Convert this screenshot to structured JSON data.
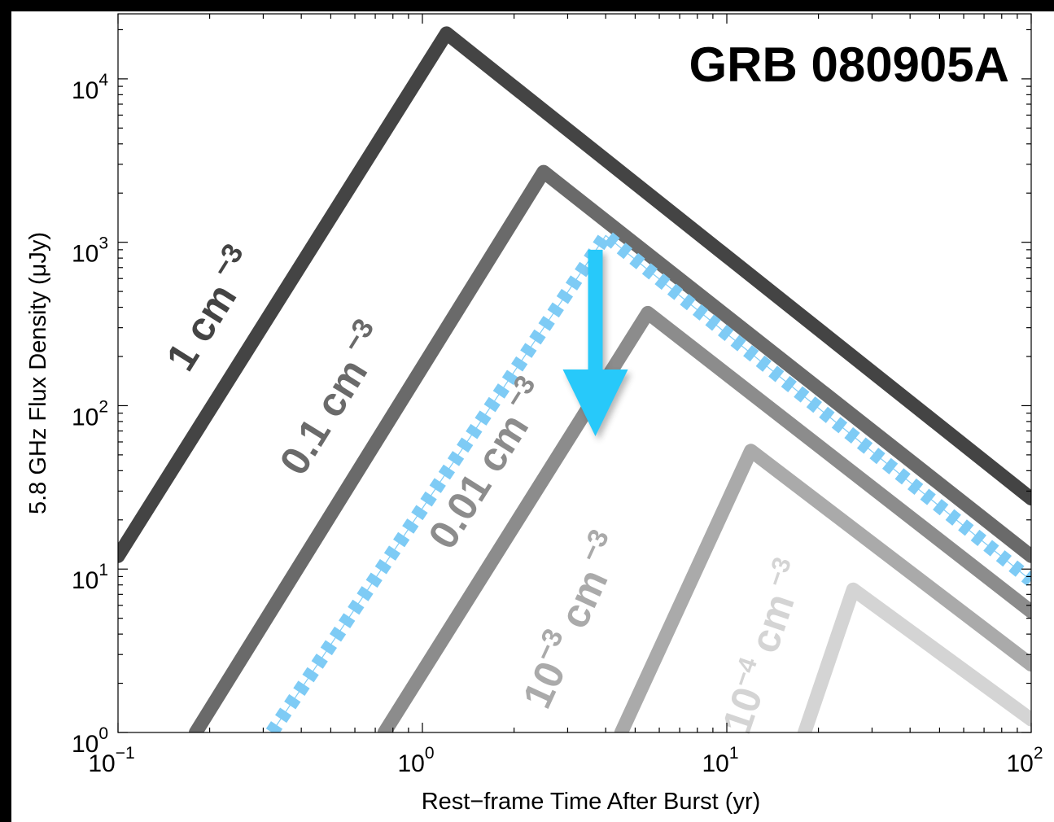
{
  "chart_data": {
    "type": "line",
    "title": "GRB 080905A",
    "xlabel": "Rest−frame Time After Burst (yr)",
    "ylabel": "5.8 GHz Flux Density (μJy)",
    "xscale": "log",
    "yscale": "log",
    "xlim": [
      0.1,
      100
    ],
    "ylim": [
      1,
      25000
    ],
    "x_ticks": [
      {
        "value": 0.1,
        "base": "10",
        "exp": "−1"
      },
      {
        "value": 1,
        "base": "10",
        "exp": "0"
      },
      {
        "value": 10,
        "base": "10",
        "exp": "1"
      },
      {
        "value": 100,
        "base": "10",
        "exp": "2"
      }
    ],
    "y_ticks": [
      {
        "value": 1,
        "base": "10",
        "exp": "0"
      },
      {
        "value": 10,
        "base": "10",
        "exp": "1"
      },
      {
        "value": 100,
        "base": "10",
        "exp": "2"
      },
      {
        "value": 1000,
        "base": "10",
        "exp": "3"
      },
      {
        "value": 10000,
        "base": "10",
        "exp": "4"
      }
    ],
    "grid": false,
    "series": [
      {
        "name": "1 cm⁻³",
        "label_main": "1 cm",
        "label_exp": "−3",
        "label_prefix_exp": "",
        "color": "#444444",
        "points": [
          [
            0.1,
            12
          ],
          [
            1.2,
            19000
          ],
          [
            100,
            27
          ]
        ]
      },
      {
        "name": "0.1 cm⁻³",
        "label_main": "0.1 cm",
        "label_exp": "−3",
        "label_prefix_exp": "",
        "color": "#6a6a6a",
        "points": [
          [
            0.18,
            1
          ],
          [
            2.5,
            2700
          ],
          [
            100,
            12
          ]
        ]
      },
      {
        "name": "0.01 cm⁻³",
        "label_main": "0.01 cm",
        "label_exp": "−3",
        "label_prefix_exp": "",
        "color": "#8c8c8c",
        "points": [
          [
            0.75,
            1
          ],
          [
            5.5,
            370
          ],
          [
            100,
            5.5
          ]
        ]
      },
      {
        "name": "10⁻³ cm⁻³",
        "label_main": "10",
        "label_exp": "−3",
        "label_prefix_exp": "−3",
        "color": "#aaaaaa",
        "points": [
          [
            4.5,
            1
          ],
          [
            12,
            53
          ],
          [
            100,
            2.6
          ]
        ]
      },
      {
        "name": "10⁻⁴ cm⁻³",
        "label_main": "10",
        "label_exp": "−3",
        "label_prefix_exp": "−4",
        "color": "#d4d4d4",
        "points": [
          [
            18,
            1
          ],
          [
            26,
            7.5
          ],
          [
            100,
            1.2
          ]
        ]
      }
    ],
    "limit_curve": {
      "color": "#7ecbf5",
      "points": [
        [
          0.32,
          1
        ],
        [
          4.0,
          1100
        ],
        [
          100,
          8.5
        ]
      ]
    },
    "upper_limit_arrow": {
      "x": 3.7,
      "y_top": 900,
      "y_bottom": 65,
      "color": "#27c9fa"
    }
  }
}
